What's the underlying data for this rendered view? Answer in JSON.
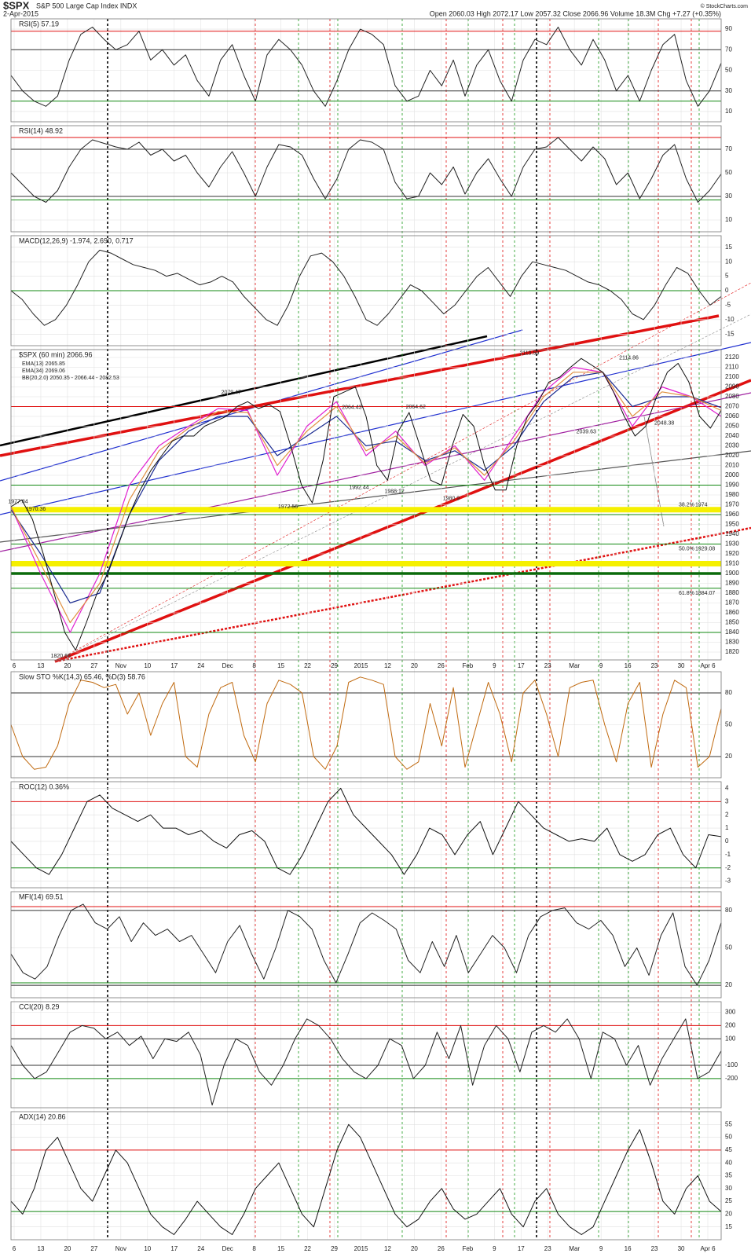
{
  "header": {
    "symbol": "$SPX",
    "name": "S&P 500 Large Cap Index INDX",
    "date": "2-Apr-2015",
    "quote": "Open 2060.03 High 2072.17 Low 2057.32 Close 2066.96 Volume 18.3M Chg +7.27 (+0.35%)",
    "credit": "© StockCharts.com"
  },
  "x_axis_labels": [
    "6",
    "13",
    "20",
    "27",
    "Nov",
    "10",
    "17",
    "24",
    "Dec",
    "8",
    "15",
    "22",
    "29",
    "2015",
    "12",
    "20",
    "26",
    "Feb",
    "9",
    "17",
    "23",
    "Mar",
    "9",
    "16",
    "23",
    "30",
    "Apr 6"
  ],
  "chart_data": [
    {
      "type": "line",
      "title": "RSI(5) 57.19",
      "ylim": [
        0,
        100
      ],
      "yticks": [
        10,
        30,
        50,
        70,
        90
      ],
      "color": "#222222",
      "hlines": [
        {
          "value": 88,
          "color": "#e01010"
        },
        {
          "value": 70,
          "color": "#333333"
        },
        {
          "value": 30,
          "color": "#333333"
        },
        {
          "value": 20,
          "color": "#118811"
        }
      ],
      "values": [
        45,
        30,
        20,
        15,
        25,
        60,
        85,
        92,
        80,
        70,
        75,
        88,
        60,
        70,
        55,
        65,
        40,
        25,
        60,
        75,
        45,
        20,
        65,
        80,
        70,
        55,
        30,
        15,
        40,
        70,
        90,
        85,
        75,
        35,
        20,
        25,
        50,
        35,
        60,
        25,
        55,
        70,
        40,
        20,
        60,
        80,
        75,
        92,
        70,
        55,
        80,
        60,
        30,
        45,
        20,
        50,
        75,
        85,
        40,
        15,
        30,
        57
      ]
    },
    {
      "type": "line",
      "title": "RSI(14) 48.92",
      "ylim": [
        0,
        90
      ],
      "yticks": [
        10,
        30,
        50,
        70
      ],
      "color": "#222222",
      "hlines": [
        {
          "value": 80,
          "color": "#e01010"
        },
        {
          "value": 70,
          "color": "#333333"
        },
        {
          "value": 30,
          "color": "#333333"
        },
        {
          "value": 27,
          "color": "#118811"
        }
      ],
      "values": [
        50,
        40,
        30,
        25,
        35,
        55,
        70,
        78,
        75,
        72,
        70,
        76,
        65,
        70,
        60,
        65,
        50,
        38,
        55,
        68,
        50,
        30,
        55,
        74,
        72,
        65,
        45,
        28,
        45,
        70,
        78,
        76,
        70,
        42,
        28,
        30,
        50,
        40,
        55,
        32,
        50,
        62,
        45,
        30,
        55,
        70,
        72,
        80,
        70,
        60,
        72,
        62,
        40,
        50,
        28,
        45,
        65,
        74,
        45,
        25,
        35,
        49
      ]
    },
    {
      "type": "line",
      "title": "MACD(12,26,9) -1.974, 2.690, 0.717",
      "ylim": [
        -19,
        19
      ],
      "yticks": [
        15,
        10,
        5,
        0,
        -5,
        -10,
        -15
      ],
      "color": "#222222",
      "hlines": [
        {
          "value": 0,
          "color": "#118811"
        }
      ],
      "values": [
        0,
        -3,
        -8,
        -12,
        -10,
        -5,
        2,
        10,
        14,
        13,
        11,
        9,
        8,
        7,
        5,
        6,
        4,
        2,
        3,
        5,
        3,
        -2,
        -6,
        -10,
        -12,
        -5,
        5,
        12,
        13,
        10,
        5,
        -2,
        -10,
        -12,
        -8,
        -3,
        2,
        0,
        -4,
        -8,
        -5,
        0,
        5,
        8,
        3,
        -2,
        5,
        10,
        9,
        8,
        7,
        5,
        3,
        2,
        0,
        -3,
        -8,
        -10,
        -5,
        2,
        8,
        6,
        0,
        -5,
        -2
      ]
    },
    {
      "type": "price",
      "title": "$SPX (60 min) 2066.96",
      "ylim": [
        1812,
        2128
      ],
      "yticks": [
        1820,
        1830,
        1840,
        1850,
        1860,
        1870,
        1880,
        1890,
        1900,
        1910,
        1920,
        1930,
        1940,
        1950,
        1960,
        1970,
        1980,
        1990,
        2000,
        2010,
        2020,
        2030,
        2040,
        2050,
        2060,
        2070,
        2080,
        2090,
        2100,
        2110,
        2120
      ],
      "color": "#111111",
      "hlines": [
        {
          "value": 2070,
          "color": "#e01010"
        },
        {
          "value": 1990,
          "color": "#118811"
        },
        {
          "value": 1965,
          "color": "#f5f000"
        },
        {
          "value": 1960,
          "color": "#118811"
        },
        {
          "value": 1930,
          "color": "#118811"
        },
        {
          "value": 1910,
          "color": "#f5f000"
        },
        {
          "value": 1900,
          "color": "#0a6a0a"
        },
        {
          "value": 1885,
          "color": "#118811"
        },
        {
          "value": 1840,
          "color": "#118811"
        }
      ],
      "values": [
        1968,
        1975,
        1955,
        1920,
        1880,
        1840,
        1822,
        1850,
        1880,
        1900,
        1930,
        1960,
        1985,
        2005,
        2020,
        2035,
        2040,
        2040,
        2050,
        2055,
        2060,
        2070,
        2075,
        2068,
        2072,
        2065,
        2030,
        1990,
        1972,
        2015,
        2080,
        2085,
        2090,
        2060,
        2010,
        1995,
        2045,
        2064,
        2030,
        1995,
        1990,
        2030,
        2062,
        2050,
        2010,
        1985,
        1985,
        2030,
        2060,
        2075,
        2095,
        2100,
        2110,
        2119,
        2112,
        2105,
        2085,
        2060,
        2040,
        2050,
        2080,
        2105,
        2114,
        2095,
        2060,
        2048,
        2066
      ],
      "series": [
        {
          "name": "EMA(13) 2065.85",
          "color": "#e020d0",
          "values": [
            1968,
            1900,
            1840,
            1900,
            1990,
            2030,
            2050,
            2068,
            2066,
            2000,
            2050,
            2075,
            2020,
            2045,
            2010,
            2030,
            1995,
            2040,
            2085,
            2110,
            2105,
            2050,
            2090,
            2080,
            2060
          ]
        },
        {
          "name": "EMA(34) 2069.06",
          "color": "#1a2a90",
          "values": [
            1965,
            1920,
            1870,
            1880,
            1960,
            2015,
            2045,
            2060,
            2060,
            2020,
            2040,
            2060,
            2030,
            2035,
            2015,
            2025,
            2005,
            2030,
            2075,
            2100,
            2105,
            2070,
            2080,
            2080,
            2069
          ]
        },
        {
          "name": "BB(20,2.0) 2050.35 - 2066.44 - 2082.53",
          "color": "#e09040",
          "values": [
            1968,
            1910,
            1850,
            1890,
            1975,
            2025,
            2048,
            2065,
            2064,
            2010,
            2045,
            2070,
            2025,
            2040,
            2012,
            2028,
            2000,
            2035,
            2080,
            2105,
            2105,
            2060,
            2085,
            2080,
            2066
          ]
        }
      ],
      "annotations": [
        1977.84,
        1970.36,
        1820.66,
        2079.47,
        1972.56,
        2064.43,
        1992.44,
        2064.62,
        1988.12,
        1980.9,
        2119.59,
        2039.63,
        2114.86,
        2048.38
      ],
      "fib": [
        {
          "level": "38.2%",
          "value": 1974
        },
        {
          "level": "50.0%",
          "value": 1929.08
        },
        {
          "level": "61.8%",
          "value": 1884.07
        }
      ]
    },
    {
      "type": "line",
      "title": "Slow STO %K(14,3) 65.46, %D(3) 58.76",
      "ylim": [
        0,
        100
      ],
      "yticks": [
        20,
        50,
        80
      ],
      "color": "#c06a10",
      "hlines": [
        {
          "value": 80,
          "color": "#333333"
        },
        {
          "value": 20,
          "color": "#333333"
        }
      ],
      "values": [
        50,
        20,
        8,
        10,
        30,
        70,
        92,
        90,
        85,
        88,
        60,
        80,
        40,
        70,
        90,
        20,
        10,
        60,
        85,
        90,
        40,
        15,
        70,
        92,
        88,
        80,
        20,
        8,
        30,
        90,
        95,
        92,
        88,
        20,
        8,
        15,
        70,
        30,
        85,
        10,
        50,
        90,
        60,
        15,
        80,
        92,
        60,
        20,
        85,
        90,
        92,
        50,
        15,
        70,
        90,
        10,
        60,
        92,
        85,
        10,
        20,
        65
      ]
    },
    {
      "type": "line",
      "title": "ROC(12) 0.36%",
      "ylim": [
        -3.5,
        4.5
      ],
      "yticks": [
        -3,
        -2,
        -1,
        0,
        1,
        2,
        3,
        4
      ],
      "color": "#111111",
      "hlines": [
        {
          "value": 3,
          "color": "#e01010"
        },
        {
          "value": -2,
          "color": "#118811"
        }
      ],
      "values": [
        0,
        -1,
        -2,
        -2.5,
        -1,
        1,
        3,
        3.5,
        2.5,
        2,
        1.5,
        2,
        1,
        1,
        0.5,
        0.8,
        0,
        -0.5,
        0.5,
        0.8,
        0,
        -2,
        -2.5,
        -1,
        1,
        3,
        4,
        2,
        1,
        0,
        -1,
        -2.5,
        -1,
        1,
        0.5,
        -1,
        0.5,
        1.5,
        -1,
        1,
        3,
        2,
        1,
        0.5,
        0,
        0.2,
        0,
        1,
        -1,
        -1.5,
        -1,
        0.5,
        1,
        -1,
        -2,
        0.5,
        0.36
      ]
    },
    {
      "type": "line",
      "title": "MFI(14) 69.51",
      "ylim": [
        10,
        95
      ],
      "yticks": [
        20,
        50,
        80
      ],
      "color": "#222222",
      "hlines": [
        {
          "value": 83,
          "color": "#e01010"
        },
        {
          "value": 80,
          "color": "#333333"
        },
        {
          "value": 22,
          "color": "#118811"
        },
        {
          "value": 20,
          "color": "#333333"
        }
      ],
      "values": [
        45,
        30,
        25,
        35,
        60,
        80,
        85,
        70,
        65,
        75,
        55,
        70,
        60,
        65,
        55,
        60,
        45,
        30,
        55,
        68,
        45,
        25,
        50,
        80,
        75,
        65,
        40,
        22,
        45,
        70,
        78,
        72,
        65,
        40,
        30,
        55,
        35,
        60,
        30,
        45,
        60,
        50,
        30,
        60,
        75,
        80,
        82,
        70,
        65,
        72,
        60,
        35,
        50,
        28,
        60,
        78,
        35,
        20,
        40,
        70
      ]
    },
    {
      "type": "line",
      "title": "CCI(20) 8.29",
      "ylim": [
        -420,
        380
      ],
      "yticks": [
        -200,
        -100,
        100,
        200,
        300
      ],
      "color": "#222222",
      "hlines": [
        {
          "value": 200,
          "color": "#e01010"
        },
        {
          "value": 100,
          "color": "#333333"
        },
        {
          "value": -100,
          "color": "#333333"
        },
        {
          "value": -200,
          "color": "#118811"
        }
      ],
      "values": [
        50,
        -100,
        -200,
        -150,
        0,
        150,
        200,
        180,
        100,
        150,
        50,
        120,
        -50,
        100,
        80,
        150,
        -20,
        -400,
        -100,
        100,
        50,
        -150,
        -250,
        -100,
        100,
        250,
        200,
        100,
        -50,
        -150,
        -200,
        -100,
        100,
        50,
        -200,
        -100,
        150,
        -50,
        200,
        -250,
        50,
        200,
        100,
        -150,
        150,
        200,
        150,
        250,
        100,
        -200,
        150,
        100,
        -100,
        50,
        -250,
        -50,
        100,
        250,
        -200,
        -150,
        8
      ]
    },
    {
      "type": "line",
      "title": "ADX(14) 20.86",
      "ylim": [
        10,
        60
      ],
      "yticks": [
        15,
        20,
        25,
        30,
        35,
        40,
        45,
        50,
        55
      ],
      "color": "#111111",
      "hlines": [
        {
          "value": 45,
          "color": "#e01010"
        },
        {
          "value": 21,
          "color": "#118811"
        }
      ],
      "values": [
        25,
        20,
        30,
        45,
        50,
        40,
        30,
        25,
        35,
        45,
        40,
        30,
        20,
        15,
        12,
        18,
        25,
        20,
        15,
        12,
        20,
        30,
        35,
        40,
        30,
        20,
        15,
        30,
        45,
        55,
        50,
        40,
        30,
        20,
        15,
        18,
        25,
        30,
        22,
        18,
        20,
        25,
        30,
        20,
        15,
        25,
        30,
        20,
        15,
        12,
        15,
        25,
        35,
        45,
        53,
        40,
        25,
        20,
        30,
        35,
        25,
        21
      ]
    }
  ]
}
